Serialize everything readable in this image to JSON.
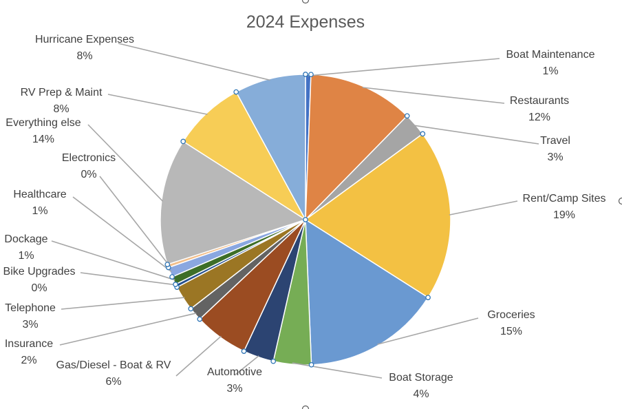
{
  "chart_data": {
    "type": "pie",
    "title": "2024 Expenses",
    "slices": [
      {
        "name": "Boat Maintenance",
        "pct_label": "1%",
        "value": 0.6,
        "color": "#4472c4"
      },
      {
        "name": "Restaurants",
        "pct_label": "12%",
        "value": 11.7,
        "color": "#df8445"
      },
      {
        "name": "Travel",
        "pct_label": "3%",
        "value": 2.6,
        "color": "#a5a5a5"
      },
      {
        "name": "Rent/Camp Sites",
        "pct_label": "19%",
        "value": 19.0,
        "color": "#f3c143"
      },
      {
        "name": "Groceries",
        "pct_label": "15%",
        "value": 15.3,
        "color": "#6a99d1"
      },
      {
        "name": "Boat Storage",
        "pct_label": "4%",
        "value": 4.2,
        "color": "#76ad55"
      },
      {
        "name": "Automotive",
        "pct_label": "3%",
        "value": 3.4,
        "color": "#2c4472"
      },
      {
        "name": "Gas/Diesel - Boat & RV",
        "pct_label": "6%",
        "value": 6.0,
        "color": "#9b4c22"
      },
      {
        "name": "Insurance",
        "pct_label": "2%",
        "value": 1.5,
        "color": "#636363"
      },
      {
        "name": "Telephone",
        "pct_label": "3%",
        "value": 2.8,
        "color": "#9b7624"
      },
      {
        "name": "Bike Upgrades",
        "pct_label": "0%",
        "value": 0.35,
        "color": "#254f8e"
      },
      {
        "name": "Dockage",
        "pct_label": "1%",
        "value": 0.9,
        "color": "#3d6e28"
      },
      {
        "name": "Healthcare",
        "pct_label": "1%",
        "value": 1.1,
        "color": "#8aa7e0"
      },
      {
        "name": "Electronics",
        "pct_label": "0%",
        "value": 0.35,
        "color": "#f2be8a"
      },
      {
        "name": "Everything else",
        "pct_label": "14%",
        "value": 14.0,
        "color": "#b8b8b8"
      },
      {
        "name": "RV Prep & Maint",
        "pct_label": "8%",
        "value": 8.0,
        "color": "#f7cd56"
      },
      {
        "name": "Hurricane Expenses",
        "pct_label": "8%",
        "value": 7.9,
        "color": "#86add9"
      }
    ],
    "legend": "none (data labels with leader lines)"
  }
}
